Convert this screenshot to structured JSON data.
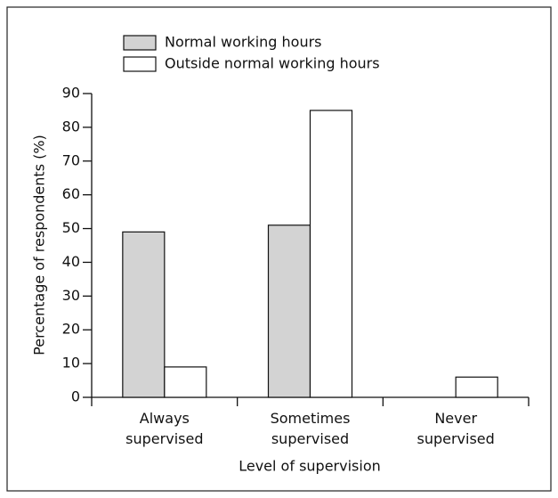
{
  "chart_data": {
    "type": "bar",
    "x_label": "Level of supervision",
    "y_label": "Percentage of respondents (%)",
    "categories": [
      "Always supervised",
      "Sometimes supervised",
      "Never supervised"
    ],
    "series": [
      {
        "name": "Normal working hours",
        "color": "#d3d3d3",
        "values": [
          49,
          51,
          0
        ]
      },
      {
        "name": "Outside normal working hours",
        "color": "#ffffff",
        "values": [
          9,
          85,
          6
        ]
      }
    ],
    "ylim": [
      0,
      90
    ],
    "yticks": [
      0,
      10,
      20,
      30,
      40,
      50,
      60,
      70,
      80,
      90
    ],
    "grid": false,
    "legend": "top-left"
  }
}
